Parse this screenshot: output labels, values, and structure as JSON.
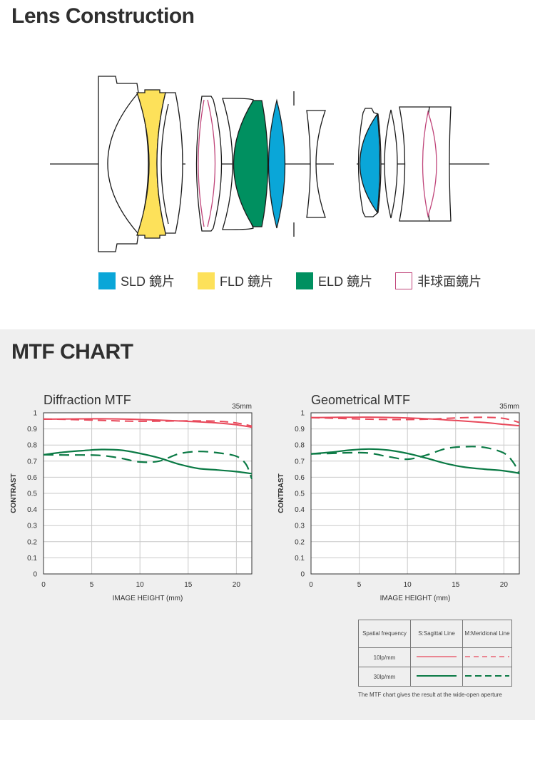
{
  "lens": {
    "title": "Lens Construction",
    "legend": [
      {
        "label": "SLD 鏡片",
        "color": "#0aa6d8",
        "type": "fill"
      },
      {
        "label": "FLD 鏡片",
        "color": "#fde15a",
        "type": "fill"
      },
      {
        "label": "ELD 鏡片",
        "color": "#009060",
        "type": "fill"
      },
      {
        "label": "非球面鏡片",
        "color": "#c0457a",
        "type": "outline"
      }
    ]
  },
  "mtf": {
    "title": "MTF CHART",
    "legend": {
      "header": [
        "Spatial frequency",
        "S:Sagittal Line",
        "M:Meridional Line"
      ],
      "rows": [
        "10lp/mm",
        "30lp/mm"
      ]
    },
    "note": "The MTF chart gives the result at the wide-open aperture"
  },
  "colors": {
    "red": "#e8485a",
    "green": "#0b7a45"
  },
  "chart_data": [
    {
      "type": "line",
      "title": "Diffraction MTF",
      "subtitle": "35mm",
      "xlabel": "IMAGE HEIGHT (mm)",
      "ylabel": "CONTRAST",
      "xlim": [
        0,
        21.6
      ],
      "ylim": [
        0,
        1
      ],
      "xticks": [
        0,
        5,
        10,
        15,
        20
      ],
      "yticks": [
        0,
        0.1,
        0.2,
        0.3,
        0.4,
        0.5,
        0.6,
        0.7,
        0.8,
        0.9,
        1
      ],
      "grid": true,
      "series": [
        {
          "name": "10lp/mm S",
          "style": "solid",
          "color": "red",
          "x": [
            0,
            3,
            6,
            9,
            12,
            15,
            18,
            20,
            21.6
          ],
          "y": [
            0.96,
            0.962,
            0.963,
            0.96,
            0.955,
            0.947,
            0.937,
            0.926,
            0.91
          ]
        },
        {
          "name": "10lp/mm M",
          "style": "dashed",
          "color": "red",
          "x": [
            0,
            3,
            6,
            9,
            12,
            15,
            18,
            20,
            21.6
          ],
          "y": [
            0.962,
            0.958,
            0.953,
            0.948,
            0.948,
            0.95,
            0.948,
            0.937,
            0.918
          ]
        },
        {
          "name": "30lp/mm S",
          "style": "solid",
          "color": "green",
          "x": [
            0,
            2,
            4,
            6,
            8,
            10,
            12,
            14,
            16,
            18,
            20,
            21.6
          ],
          "y": [
            0.74,
            0.755,
            0.765,
            0.772,
            0.768,
            0.748,
            0.72,
            0.682,
            0.655,
            0.645,
            0.635,
            0.622
          ]
        },
        {
          "name": "30lp/mm M",
          "style": "dashed",
          "color": "green",
          "x": [
            0,
            2,
            4,
            6,
            8,
            10,
            12,
            14,
            16,
            18,
            20,
            21,
            21.6
          ],
          "y": [
            0.74,
            0.738,
            0.738,
            0.735,
            0.718,
            0.695,
            0.7,
            0.745,
            0.76,
            0.752,
            0.73,
            0.68,
            0.59
          ]
        }
      ]
    },
    {
      "type": "line",
      "title": "Geometrical MTF",
      "subtitle": "35mm",
      "xlabel": "IMAGE HEIGHT (mm)",
      "ylabel": "CONTRAST",
      "xlim": [
        0,
        21.6
      ],
      "ylim": [
        0,
        1
      ],
      "xticks": [
        0,
        5,
        10,
        15,
        20
      ],
      "yticks": [
        0,
        0.1,
        0.2,
        0.3,
        0.4,
        0.5,
        0.6,
        0.7,
        0.8,
        0.9,
        1
      ],
      "grid": true,
      "series": [
        {
          "name": "10lp/mm S",
          "style": "solid",
          "color": "red",
          "x": [
            0,
            3,
            6,
            9,
            12,
            15,
            18,
            20,
            21.6
          ],
          "y": [
            0.97,
            0.972,
            0.973,
            0.97,
            0.963,
            0.952,
            0.94,
            0.928,
            0.92
          ]
        },
        {
          "name": "10lp/mm M",
          "style": "dashed",
          "color": "red",
          "x": [
            0,
            3,
            6,
            9,
            12,
            15,
            18,
            20,
            21.6
          ],
          "y": [
            0.97,
            0.965,
            0.96,
            0.958,
            0.96,
            0.968,
            0.972,
            0.965,
            0.94
          ]
        },
        {
          "name": "30lp/mm S",
          "style": "solid",
          "color": "green",
          "x": [
            0,
            2,
            4,
            6,
            8,
            10,
            12,
            14,
            16,
            18,
            20,
            21.6
          ],
          "y": [
            0.745,
            0.755,
            0.768,
            0.775,
            0.768,
            0.748,
            0.718,
            0.685,
            0.662,
            0.65,
            0.64,
            0.625
          ]
        },
        {
          "name": "30lp/mm M",
          "style": "dashed",
          "color": "green",
          "x": [
            0,
            2,
            4,
            6,
            8,
            10,
            12,
            14,
            16,
            18,
            20,
            21,
            21.6
          ],
          "y": [
            0.745,
            0.748,
            0.752,
            0.75,
            0.728,
            0.712,
            0.738,
            0.778,
            0.79,
            0.785,
            0.75,
            0.69,
            0.62
          ]
        }
      ]
    }
  ]
}
